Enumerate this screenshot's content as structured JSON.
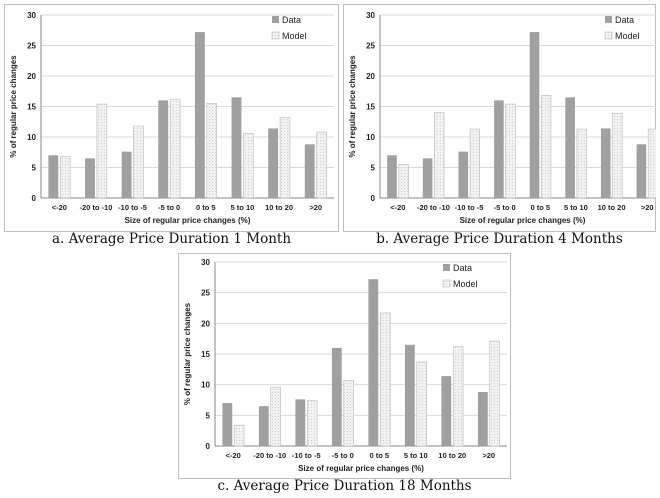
{
  "colors": {
    "data": "#a0a0a0",
    "model": "#f2f2f2",
    "model_stroke": "#b8b8b8",
    "grid": "#d9d9d9",
    "frame": "#bfbfbf"
  },
  "chart_data": [
    {
      "type": "bar",
      "caption": "a. Average Price Duration 1 Month",
      "categories": [
        "<-20",
        "-20 to -10",
        "-10 to -5",
        "-5 to 0",
        "0 to 5",
        "5 to 10",
        "10 to 20",
        ">20"
      ],
      "series": [
        {
          "name": "Data",
          "values": [
            7.0,
            6.5,
            7.6,
            16.0,
            27.2,
            16.5,
            11.4,
            8.8
          ]
        },
        {
          "name": "Model",
          "values": [
            6.8,
            15.4,
            11.8,
            16.2,
            15.5,
            10.6,
            13.2,
            10.8
          ]
        }
      ],
      "xlabel": "Size of regular price changes (%)",
      "ylabel": "% of regular price changes",
      "ylim": [
        0,
        30
      ],
      "yticks": [
        0,
        5,
        10,
        15,
        20,
        25,
        30
      ],
      "grid": true,
      "legend": "top-right"
    },
    {
      "type": "bar",
      "caption": "b. Average Price Duration 4 Months",
      "categories": [
        "<-20",
        "-20 to -10",
        "-10 to -5",
        "-5 to 0",
        "0 to 5",
        "5 to 10",
        "10 to 20",
        ">20"
      ],
      "series": [
        {
          "name": "Data",
          "values": [
            7.0,
            6.5,
            7.6,
            16.0,
            27.2,
            16.5,
            11.4,
            8.8
          ]
        },
        {
          "name": "Model",
          "values": [
            5.5,
            14.0,
            11.3,
            15.4,
            16.8,
            11.3,
            13.9,
            11.3
          ]
        }
      ],
      "xlabel": "Size of regular price changes (%)",
      "ylabel": "% of regular price changes",
      "ylim": [
        0,
        30
      ],
      "yticks": [
        0,
        5,
        10,
        15,
        20,
        25,
        30
      ],
      "grid": true,
      "legend": "top-right"
    },
    {
      "type": "bar",
      "caption": "c. Average Price Duration 18 Months",
      "categories": [
        "<-20",
        "-20 to -10",
        "-10 to -5",
        "-5 to 0",
        "0 to 5",
        "5 to 10",
        "10 to 20",
        ">20"
      ],
      "series": [
        {
          "name": "Data",
          "values": [
            7.0,
            6.5,
            7.6,
            16.0,
            27.2,
            16.5,
            11.4,
            8.8
          ]
        },
        {
          "name": "Model",
          "values": [
            3.4,
            9.6,
            7.4,
            10.7,
            21.7,
            13.7,
            16.2,
            17.1
          ]
        }
      ],
      "xlabel": "Size of regular price changes (%)",
      "ylabel": "% of regular price changes",
      "ylim": [
        0,
        30
      ],
      "yticks": [
        0,
        5,
        10,
        15,
        20,
        25,
        30
      ],
      "grid": true,
      "legend": "top-right"
    }
  ]
}
